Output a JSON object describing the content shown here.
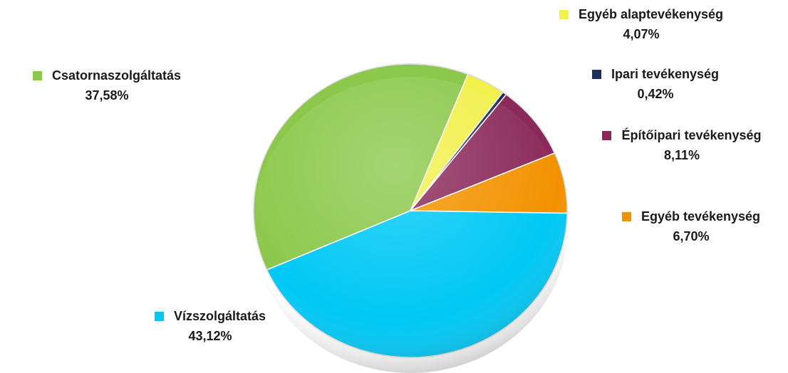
{
  "chart_data": {
    "type": "pie",
    "title": "",
    "legend": "data-labels",
    "slices": [
      {
        "name": "Egyéb alaptevékenység",
        "value": 4.07,
        "percent_label": "4,07%",
        "color": "#f2f04a"
      },
      {
        "name": "Ipari tevékenység",
        "value": 0.42,
        "percent_label": "0,42%",
        "color": "#1c2f5e"
      },
      {
        "name": "Építőipari tevékenység",
        "value": 8.11,
        "percent_label": "8,11%",
        "color": "#8b2a5a"
      },
      {
        "name": "Egyéb tevékenység",
        "value": 6.7,
        "percent_label": "6,70%",
        "color": "#f39200"
      },
      {
        "name": "Vízszolgáltatás",
        "value": 43.12,
        "percent_label": "43,12%",
        "color": "#00c8f5"
      },
      {
        "name": "Csatornaszolgáltatás",
        "value": 37.58,
        "percent_label": "37,58%",
        "color": "#8cc84b"
      }
    ]
  }
}
